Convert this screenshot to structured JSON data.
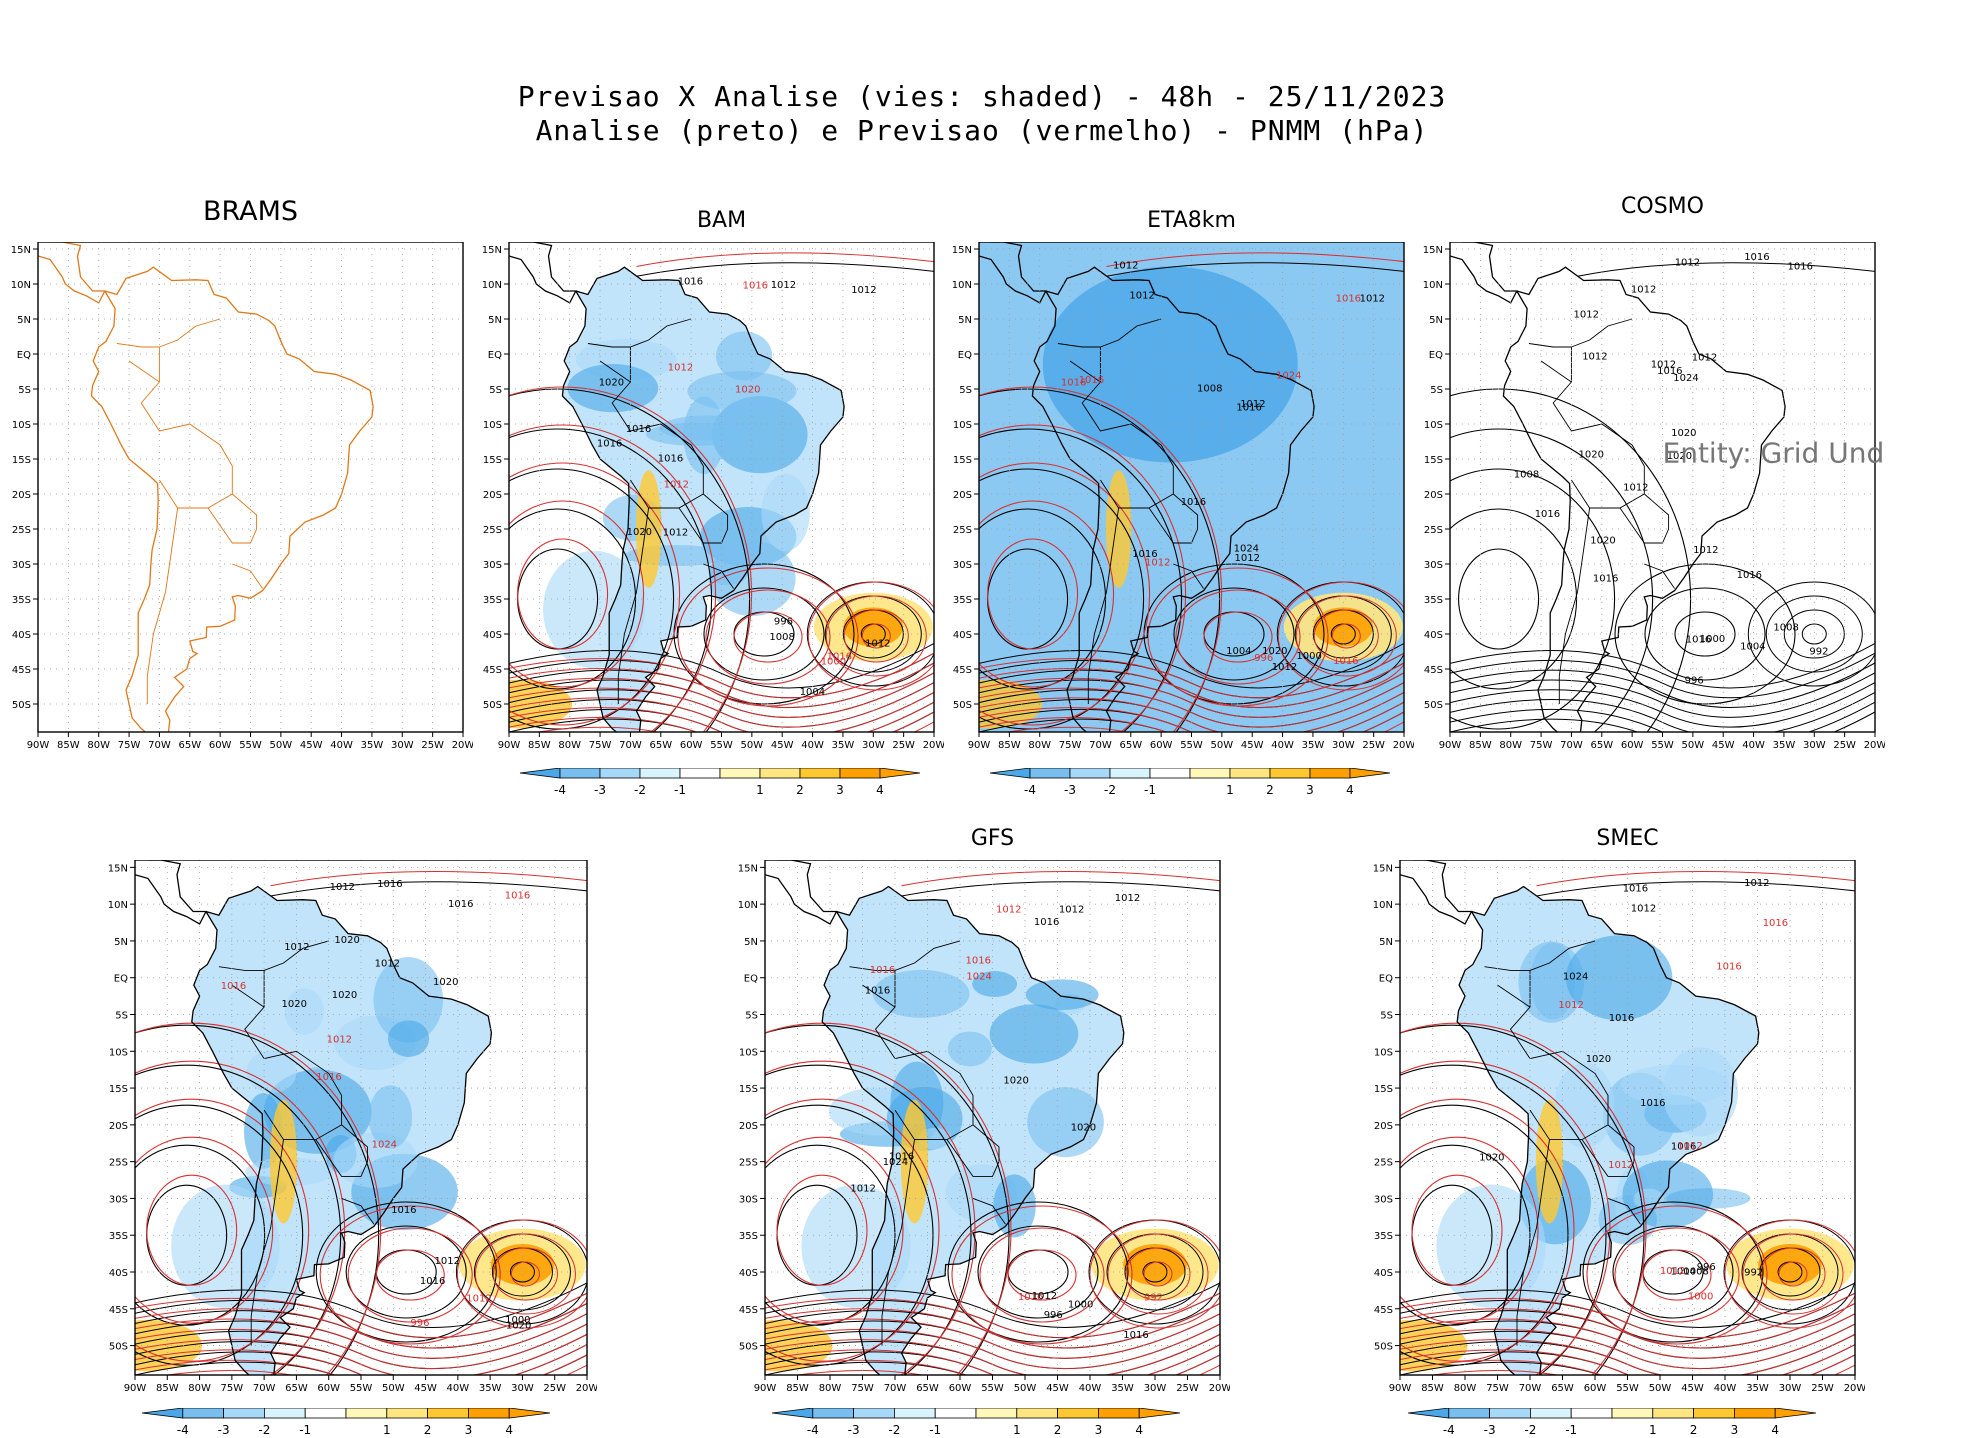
{
  "header": {
    "title_line1": "Previsao X Analise (vies: shaded) - 48h - 25/11/2023",
    "title_line2": "Analise (preto) e Previsao (vermelho) - PNMM (hPa)"
  },
  "axes": {
    "lat_labels": [
      "15N",
      "10N",
      "5N",
      "EQ",
      "5S",
      "10S",
      "15S",
      "20S",
      "25S",
      "30S",
      "35S",
      "40S",
      "45S",
      "50S"
    ],
    "lon_labels": [
      "90W",
      "85W",
      "80W",
      "75W",
      "70W",
      "65W",
      "60W",
      "55W",
      "50W",
      "45W",
      "40W",
      "35W",
      "30W",
      "25W",
      "20W"
    ]
  },
  "colorbar": {
    "labels": [
      "-4",
      "-3",
      "-2",
      "-1",
      "1",
      "2",
      "3",
      "4"
    ],
    "colors": [
      "#4aa8e8",
      "#78bff0",
      "#a8d8f8",
      "#d8f4fc",
      "#ffffff",
      "#fff8b8",
      "#ffe680",
      "#ffc830",
      "#ffa000"
    ]
  },
  "panels": [
    {
      "id": "brams",
      "title": "BRAMS",
      "contour_labels": []
    },
    {
      "id": "bam",
      "title": "BAM",
      "contour_labels": [
        "1016",
        "1016",
        "1012",
        "1012",
        "1012",
        "1012",
        "1016",
        "1012",
        "1016",
        "1016",
        "1020",
        "1020",
        "1020",
        "1016",
        "1012",
        "1004",
        "1000",
        "996",
        "1008"
      ]
    },
    {
      "id": "eta8km",
      "title": "ETA8km",
      "contour_labels": [
        "1012",
        "1016",
        "1012",
        "1012",
        "1012",
        "1012",
        "1012",
        "1016",
        "1016",
        "1016",
        "1016",
        "1016",
        "1008",
        "1024",
        "1024",
        "1020",
        "1016",
        "1012",
        "1004",
        "996",
        "1000"
      ]
    },
    {
      "id": "cosmo",
      "title": "COSMO",
      "contour_labels": [
        "1016",
        "1012",
        "1012",
        "1016",
        "1012",
        "1012",
        "1012",
        "1012",
        "1012",
        "1016",
        "1016",
        "1020",
        "1016",
        "1016",
        "1020",
        "1020",
        "1020",
        "1024",
        "1008",
        "1012",
        "1016",
        "1004",
        "1000",
        "996",
        "992",
        "1008"
      ],
      "overlay_text": "Entity: Grid Und"
    },
    {
      "id": "panel5",
      "title": "",
      "contour_labels": [
        "1016",
        "1016",
        "1016",
        "1012",
        "1012",
        "1012",
        "1012",
        "1016",
        "1016",
        "1020",
        "1016",
        "1020",
        "1020",
        "1024",
        "1020",
        "1016",
        "1012",
        "1020",
        "1000",
        "996",
        "1012"
      ]
    },
    {
      "id": "gfs",
      "title": "GFS",
      "contour_labels": [
        "1016",
        "1012",
        "1012",
        "1012",
        "1016",
        "1016",
        "1012",
        "1016",
        "1016",
        "1020",
        "1024",
        "1024",
        "1020",
        "1016",
        "1000",
        "996",
        "992",
        "1012",
        "1016"
      ]
    },
    {
      "id": "smec",
      "title": "SMEC",
      "contour_labels": [
        "1016",
        "1016",
        "1012",
        "1012",
        "1012",
        "1016",
        "1016",
        "1012",
        "1016",
        "1020",
        "1016",
        "1020",
        "1024",
        "1012",
        "1008",
        "1004",
        "1000",
        "996",
        "992",
        "1012"
      ]
    }
  ]
}
